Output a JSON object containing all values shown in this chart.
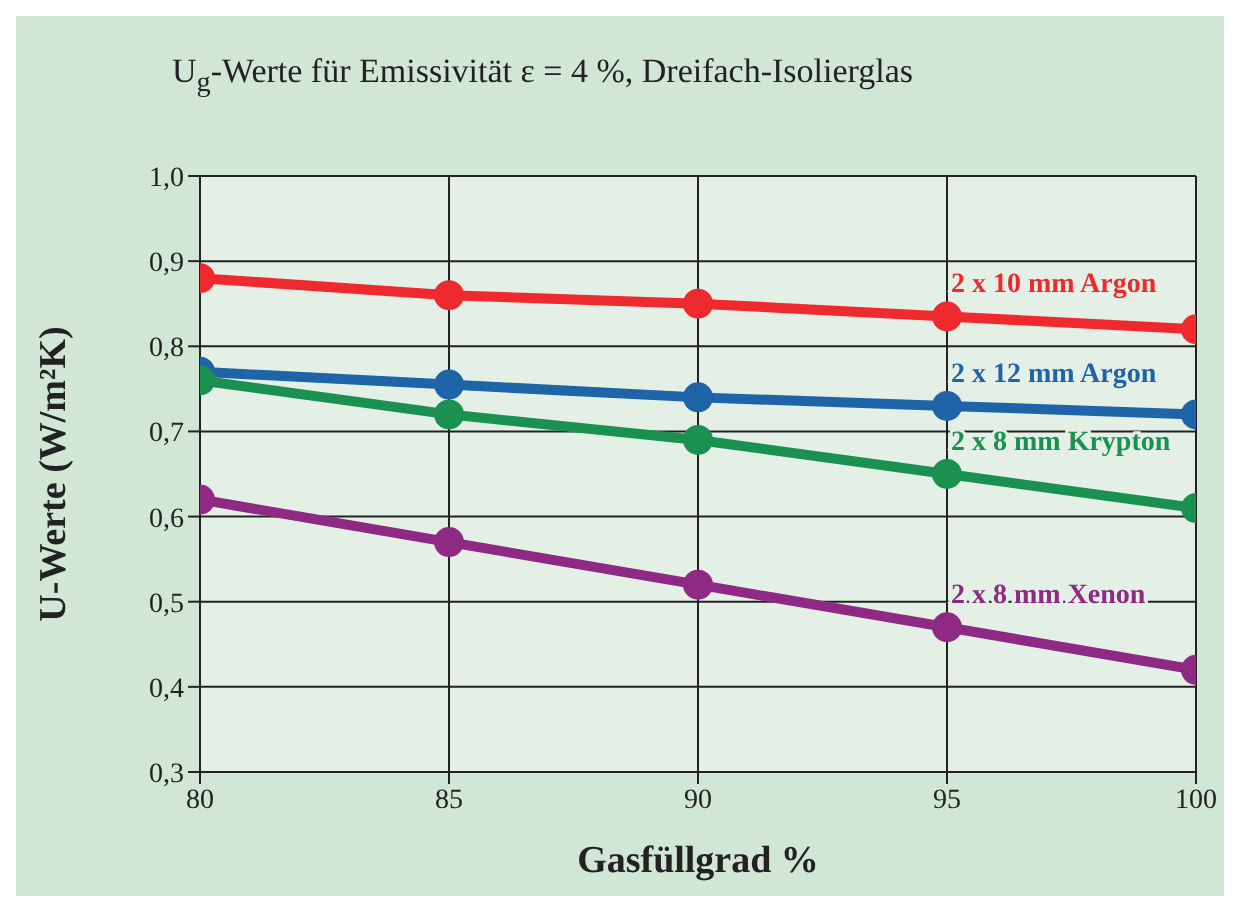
{
  "chart_data": {
    "type": "line",
    "title": "U$_{g}$-Werte für Emissivität ε = 4 %, Dreifach-Isolierglas",
    "xlabel": "Gasfüllgrad %",
    "ylabel": "U-Werte (W/m²K)",
    "x": [
      80,
      85,
      90,
      95,
      100
    ],
    "series": [
      {
        "name": "2 x 10 mm Argon",
        "color": "#ee2a2e",
        "values": [
          0.88,
          0.86,
          0.85,
          0.835,
          0.82
        ]
      },
      {
        "name": "2 x 12 mm Argon",
        "color": "#1f63a8",
        "values": [
          0.77,
          0.755,
          0.74,
          0.73,
          0.72
        ]
      },
      {
        "name": "2 x 8 mm Krypton",
        "color": "#1a9150",
        "values": [
          0.76,
          0.72,
          0.69,
          0.65,
          0.61
        ]
      },
      {
        "name": "2 x 8 mm Xenon",
        "color": "#8e2a84",
        "values": [
          0.62,
          0.57,
          0.52,
          0.47,
          0.42
        ]
      }
    ],
    "xlim": [
      80,
      100
    ],
    "xticks": [
      80,
      85,
      90,
      95,
      100
    ],
    "ylim": [
      0.3,
      1.0
    ],
    "yticks": [
      {
        "value": 0.3,
        "label": "0,3"
      },
      {
        "value": 0.4,
        "label": "0,4"
      },
      {
        "value": 0.5,
        "label": "0,5"
      },
      {
        "value": 0.6,
        "label": "0,6"
      },
      {
        "value": 0.7,
        "label": "0,7"
      },
      {
        "value": 0.8,
        "label": "0,8"
      },
      {
        "value": 0.9,
        "label": "0,9"
      },
      {
        "value": 1.0,
        "label": "1,0"
      }
    ],
    "grid": true,
    "legend": false,
    "marker": "circle",
    "line_style": "solid"
  }
}
